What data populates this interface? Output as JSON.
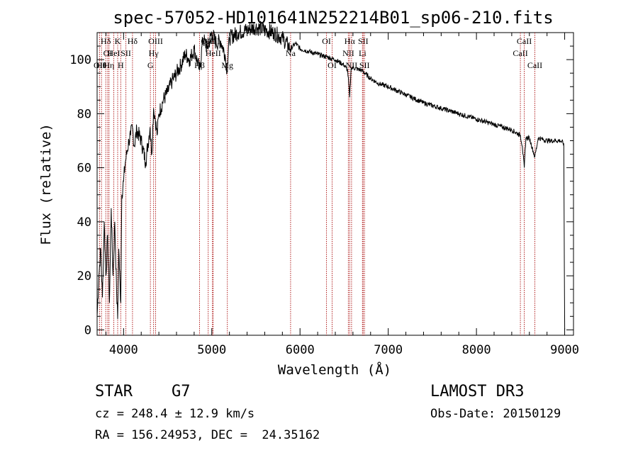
{
  "chart_data": {
    "type": "line",
    "title": "spec-57052-HD101641N252214B01_sp06-210.fits",
    "xlabel": "Wavelength (Å)",
    "ylabel": "Flux (relative)",
    "xlim": [
      3700,
      9100
    ],
    "ylim": [
      -2,
      110
    ],
    "xticks": [
      4000,
      5000,
      6000,
      7000,
      8000,
      9000
    ],
    "yticks": [
      0,
      20,
      40,
      60,
      80,
      100
    ],
    "xtick_labels": [
      "4000",
      "5000",
      "6000",
      "7000",
      "8000",
      "9000"
    ],
    "ytick_labels": [
      "0",
      "20",
      "40",
      "60",
      "80",
      "100"
    ],
    "grid": false,
    "line_color": "#000000",
    "marker_color": "#b22222",
    "series": [
      {
        "x": [
          3700,
          3720,
          3740,
          3760,
          3780,
          3800,
          3820,
          3840,
          3860,
          3880,
          3900,
          3920,
          3933,
          3945,
          3968,
          3980,
          4000,
          4020,
          4040,
          4060,
          4080,
          4100,
          4120,
          4150,
          4200,
          4250,
          4300,
          4320,
          4340,
          4360,
          4380,
          4400,
          4450,
          4500,
          4550,
          4600,
          4650,
          4700,
          4750,
          4800,
          4861,
          4900,
          4950,
          5000,
          5050,
          5100,
          5150,
          5172,
          5200,
          5300,
          5400,
          5500,
          5600,
          5700,
          5800,
          5893,
          5950,
          6000,
          6100,
          6200,
          6300,
          6400,
          6500,
          6540,
          6563,
          6580,
          6600,
          6700,
          6800,
          6900,
          7000,
          7200,
          7400,
          7600,
          7800,
          8000,
          8200,
          8400,
          8498,
          8520,
          8542,
          8560,
          8600,
          8662,
          8700,
          8800,
          8900,
          8950,
          8990,
          9000
        ],
        "y": [
          5,
          20,
          30,
          12,
          40,
          20,
          35,
          10,
          45,
          20,
          40,
          15,
          4,
          30,
          10,
          50,
          55,
          62,
          66,
          70,
          72,
          75,
          68,
          74,
          70,
          62,
          75,
          65,
          82,
          78,
          72,
          80,
          85,
          88,
          92,
          95,
          98,
          102,
          100,
          104,
          96,
          108,
          104,
          110,
          106,
          107,
          102,
          96,
          108,
          110,
          111,
          112,
          111,
          110,
          108,
          104,
          106,
          104,
          103,
          102,
          101,
          100,
          98,
          96,
          86,
          97,
          97,
          96,
          93,
          91,
          90,
          87,
          84,
          82,
          80,
          78,
          76,
          74,
          72,
          68,
          60,
          71,
          71,
          64,
          71,
          70,
          70,
          70,
          69,
          0
        ]
      }
    ],
    "line_markers": [
      {
        "x": 3727,
        "label": "OII",
        "row": 3
      },
      {
        "x": 3750,
        "label": "Hθ",
        "row": 3
      },
      {
        "x": 3798,
        "label": "Hδ",
        "row": 1
      },
      {
        "x": 3820,
        "label": "OI",
        "row": 2
      },
      {
        "x": 3835,
        "label": "Hη",
        "row": 3
      },
      {
        "x": 3889,
        "label": "HeI",
        "row": 2
      },
      {
        "x": 3933,
        "label": "K",
        "row": 1
      },
      {
        "x": 3968,
        "label": "H",
        "row": 3
      },
      {
        "x": 4026,
        "label": "SII",
        "row": 2
      },
      {
        "x": 4101,
        "label": "Hδ",
        "row": 1
      },
      {
        "x": 4304,
        "label": "G",
        "row": 3
      },
      {
        "x": 4340,
        "label": "Hγ",
        "row": 2
      },
      {
        "x": 4363,
        "label": "OIII",
        "row": 1
      },
      {
        "x": 4861,
        "label": "Hβ",
        "row": 3
      },
      {
        "x": 4959,
        "label": "OIII",
        "row": 1
      },
      {
        "x": 5007,
        "label": "OIII",
        "row": 1
      },
      {
        "x": 5016,
        "label": "HeII",
        "row": 2
      },
      {
        "x": 5176,
        "label": "Mg",
        "row": 3
      },
      {
        "x": 5893,
        "label": "Na",
        "row": 2
      },
      {
        "x": 6300,
        "label": "OI",
        "row": 1
      },
      {
        "x": 6364,
        "label": "OI",
        "row": 3
      },
      {
        "x": 6548,
        "label": "NII",
        "row": 2
      },
      {
        "x": 6563,
        "label": "Hα",
        "row": 1
      },
      {
        "x": 6584,
        "label": "NII",
        "row": 3
      },
      {
        "x": 6708,
        "label": "Li",
        "row": 2
      },
      {
        "x": 6716,
        "label": "SII",
        "row": 1
      },
      {
        "x": 6731,
        "label": "SII",
        "row": 3
      },
      {
        "x": 8498,
        "label": "CaII",
        "row": 2
      },
      {
        "x": 8542,
        "label": "CaII",
        "row": 1
      },
      {
        "x": 8662,
        "label": "CaII",
        "row": 3
      }
    ]
  },
  "info": {
    "object_class": "STAR",
    "subclass": "G7",
    "survey": "LAMOST DR3",
    "redshift": "cz = 248.4 ± 12.9 km/s",
    "obs_date": "Obs-Date: 20150129",
    "coords": "RA = 156.24953, DEC =  24.35162"
  }
}
